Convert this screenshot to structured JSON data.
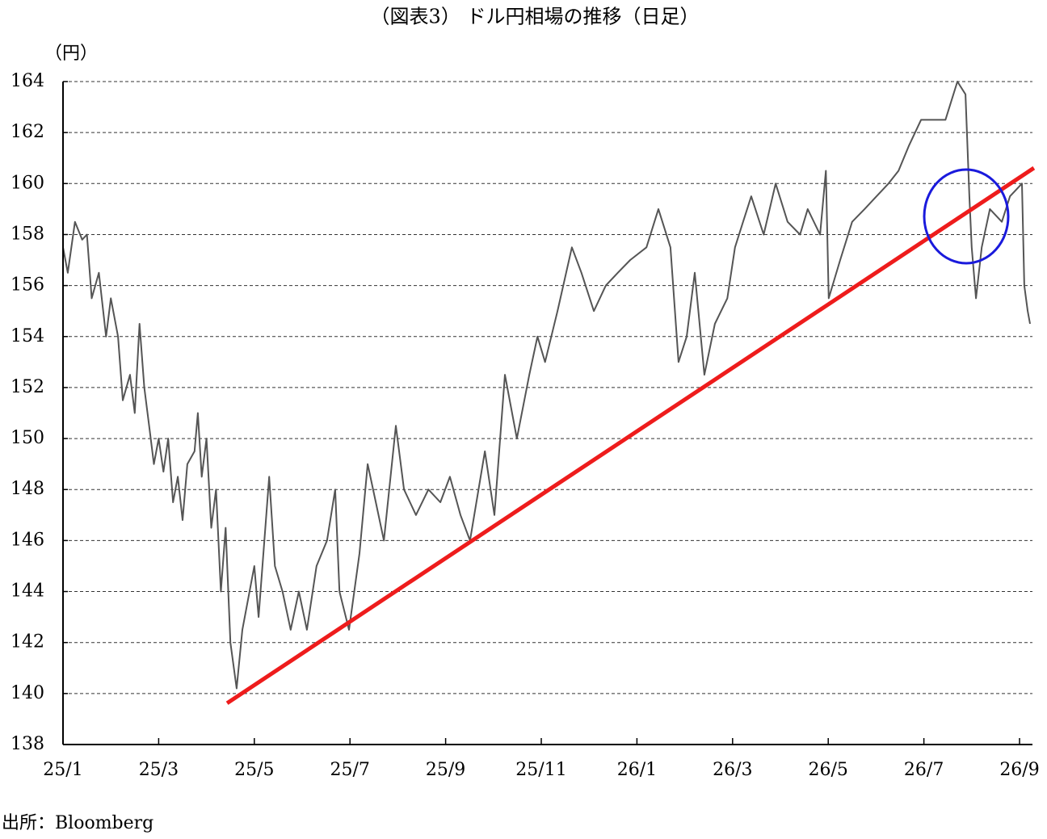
{
  "chart_data": {
    "type": "line",
    "title": "（図表3） ドル円相場の推移（日足）",
    "y_label": "（円）",
    "source": "出所：Bloomberg",
    "xlim": [
      0,
      20.27
    ],
    "xticks": [
      {
        "value": 0,
        "label": "25/1"
      },
      {
        "value": 2,
        "label": "25/3"
      },
      {
        "value": 4,
        "label": "25/5"
      },
      {
        "value": 6,
        "label": "25/7"
      },
      {
        "value": 8,
        "label": "25/9"
      },
      {
        "value": 10,
        "label": "25/11"
      },
      {
        "value": 12,
        "label": "26/1"
      },
      {
        "value": 14,
        "label": "26/3"
      },
      {
        "value": 16,
        "label": "26/5"
      },
      {
        "value": 18,
        "label": "26/7"
      },
      {
        "value": 20,
        "label": "26/9"
      }
    ],
    "ylim": [
      138,
      164
    ],
    "yticks": [
      138,
      140,
      142,
      144,
      146,
      148,
      150,
      152,
      154,
      156,
      158,
      160,
      162,
      164
    ],
    "grid": true,
    "series": [
      {
        "color": "#555555",
        "width": 2,
        "x": [
          0,
          0.1,
          0.25,
          0.4,
          0.5,
          0.6,
          0.75,
          0.9,
          1.0,
          1.15,
          1.25,
          1.4,
          1.5,
          1.6,
          1.7,
          1.8,
          1.9,
          2.0,
          2.1,
          2.2,
          2.3,
          2.4,
          2.5,
          2.6,
          2.75,
          2.82,
          2.9,
          3.0,
          3.1,
          3.2,
          3.3,
          3.4,
          3.5,
          3.63,
          3.75,
          4.0,
          4.09,
          4.31,
          4.43,
          4.59,
          4.76,
          4.93,
          5.1,
          5.3,
          5.52,
          5.69,
          5.78,
          5.98,
          6.2,
          6.37,
          6.54,
          6.71,
          6.96,
          7.13,
          7.38,
          7.64,
          7.89,
          8.09,
          8.31,
          8.51,
          8.82,
          9.02,
          9.24,
          9.49,
          9.75,
          9.92,
          10.08,
          10.34,
          10.64,
          10.84,
          11.1,
          11.35,
          11.6,
          11.86,
          12.2,
          12.45,
          12.7,
          12.87,
          13.04,
          13.21,
          13.41,
          13.63,
          13.89,
          14.05,
          14.22,
          14.39,
          14.65,
          14.9,
          15.15,
          15.41,
          15.57,
          15.83,
          15.95,
          16.01,
          16.25,
          16.5,
          16.76,
          17.01,
          17.26,
          17.47,
          17.69,
          17.94,
          18.19,
          18.45,
          18.7,
          18.87,
          18.95,
          19.0,
          19.09,
          19.21,
          19.38,
          19.63,
          19.8,
          20.05,
          20.1,
          20.17,
          20.22
        ],
        "values": [
          157.5,
          156.5,
          158.5,
          157.8,
          158,
          155.5,
          156.5,
          154,
          155.5,
          154,
          151.5,
          152.5,
          151,
          154.5,
          152,
          150.5,
          149,
          150,
          148.7,
          150,
          147.5,
          148.5,
          146.8,
          149,
          149.5,
          151,
          148.5,
          150,
          146.5,
          148,
          144,
          146.5,
          142,
          140.2,
          142.5,
          145,
          143,
          148.5,
          145,
          144,
          142.5,
          144,
          142.5,
          145,
          146,
          148,
          144,
          142.5,
          145.5,
          149,
          147.5,
          146,
          150.5,
          148,
          147,
          148,
          147.5,
          148.5,
          147,
          146,
          149.5,
          147,
          152.5,
          150,
          152.5,
          154,
          153,
          155,
          157.5,
          156.5,
          155,
          156,
          156.5,
          157,
          157.5,
          159,
          157.5,
          153,
          154,
          156.5,
          152.5,
          154.5,
          155.5,
          157.5,
          158.5,
          159.5,
          158,
          160,
          158.5,
          158,
          159,
          158,
          160.5,
          155.5,
          157,
          158.5,
          159,
          159.5,
          160,
          160.5,
          161.5,
          162.5,
          162.5,
          162.5,
          164,
          163.5,
          159.5,
          157.5,
          155.5,
          157.5,
          159,
          158.5,
          159.5,
          160,
          156,
          155,
          154.5
        ]
      },
      {
        "color": "#ee1c1c",
        "width": 5,
        "x": [
          3.43,
          20.3
        ],
        "values": [
          139.62,
          160.61
        ]
      }
    ]
  }
}
